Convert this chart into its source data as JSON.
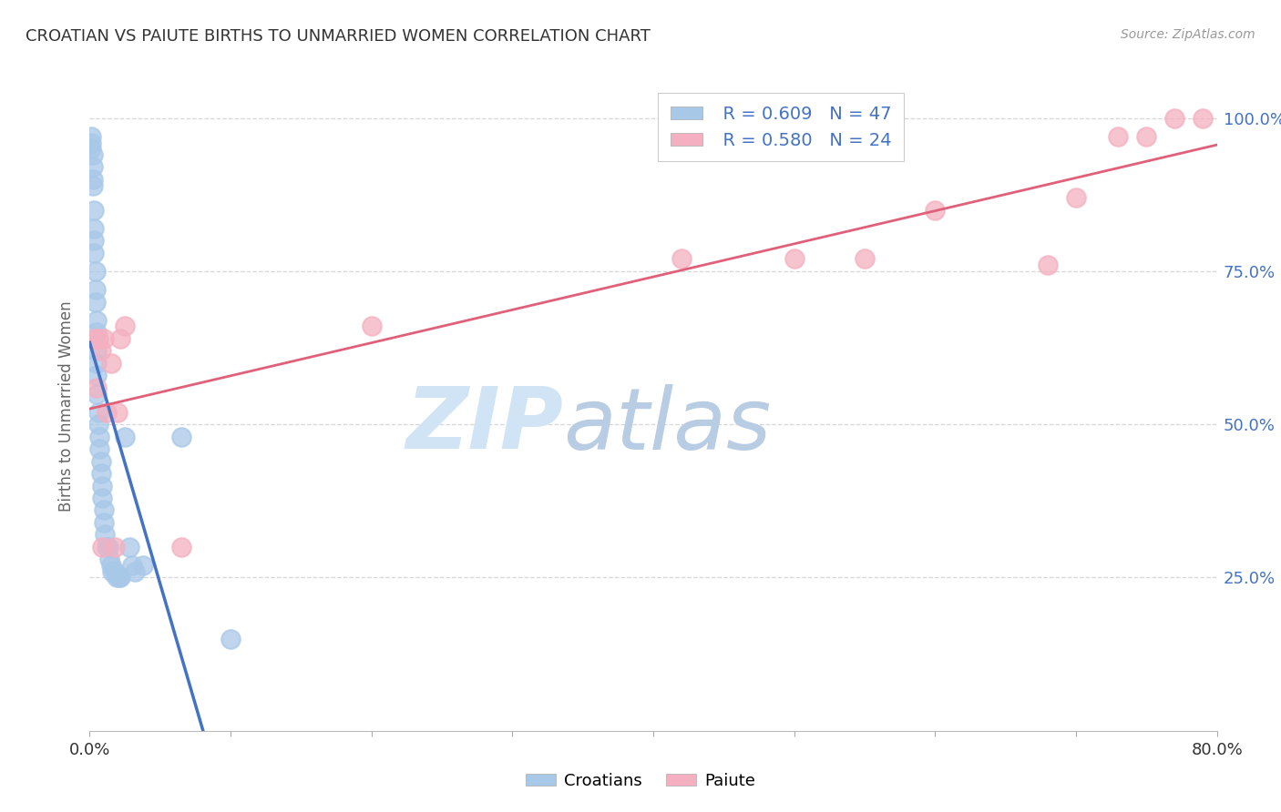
{
  "title": "CROATIAN VS PAIUTE BIRTHS TO UNMARRIED WOMEN CORRELATION CHART",
  "source": "Source: ZipAtlas.com",
  "ylabel": "Births to Unmarried Women",
  "croatian_R": "R = 0.609",
  "croatian_N": "N = 47",
  "paiute_R": "R = 0.580",
  "paiute_N": "N = 24",
  "croatian_color": "#a8c8e8",
  "croatian_line_color": "#4472c4",
  "paiute_color": "#f4b0c0",
  "paiute_line_color": "#e0607a",
  "background_color": "#ffffff",
  "grid_color": "#cccccc",
  "watermark_zip": "ZIP",
  "watermark_atlas": "atlas",
  "watermark_color_zip": "#c8dff5",
  "watermark_color_atlas": "#b8d0ee",
  "xlim": [
    0.0,
    0.8
  ],
  "ylim": [
    0.0,
    1.06
  ],
  "yticks": [
    0.25,
    0.5,
    0.75,
    1.0
  ],
  "ytick_labels": [
    "25.0%",
    "50.0%",
    "75.0%",
    "100.0%"
  ],
  "xtick_labels_show": [
    "0.0%",
    "80.0%"
  ],
  "croatian_x": [
    0.001,
    0.001,
    0.001,
    0.002,
    0.002,
    0.002,
    0.002,
    0.003,
    0.003,
    0.003,
    0.003,
    0.004,
    0.004,
    0.004,
    0.005,
    0.005,
    0.005,
    0.005,
    0.005,
    0.005,
    0.006,
    0.006,
    0.007,
    0.007,
    0.008,
    0.008,
    0.009,
    0.009,
    0.01,
    0.01,
    0.011,
    0.012,
    0.013,
    0.014,
    0.015,
    0.016,
    0.018,
    0.019,
    0.021,
    0.022,
    0.025,
    0.028,
    0.03,
    0.032,
    0.038,
    0.065,
    0.1
  ],
  "croatian_y": [
    0.97,
    0.96,
    0.95,
    0.94,
    0.92,
    0.9,
    0.89,
    0.85,
    0.82,
    0.8,
    0.78,
    0.75,
    0.72,
    0.7,
    0.67,
    0.65,
    0.62,
    0.6,
    0.58,
    0.55,
    0.52,
    0.5,
    0.48,
    0.46,
    0.44,
    0.42,
    0.4,
    0.38,
    0.36,
    0.34,
    0.32,
    0.3,
    0.3,
    0.28,
    0.27,
    0.26,
    0.26,
    0.25,
    0.25,
    0.25,
    0.48,
    0.3,
    0.27,
    0.26,
    0.27,
    0.48,
    0.15
  ],
  "paiute_x": [
    0.003,
    0.005,
    0.006,
    0.008,
    0.009,
    0.01,
    0.012,
    0.015,
    0.018,
    0.02,
    0.022,
    0.025,
    0.065,
    0.2,
    0.42,
    0.5,
    0.55,
    0.6,
    0.68,
    0.7,
    0.73,
    0.75,
    0.77,
    0.79
  ],
  "paiute_y": [
    0.64,
    0.56,
    0.64,
    0.62,
    0.3,
    0.64,
    0.52,
    0.6,
    0.3,
    0.52,
    0.64,
    0.66,
    0.3,
    0.66,
    0.77,
    0.77,
    0.77,
    0.85,
    0.76,
    0.87,
    0.97,
    0.97,
    1.0,
    1.0
  ],
  "legend_label_croatian": "Croatians",
  "legend_label_paiute": "Paiute"
}
